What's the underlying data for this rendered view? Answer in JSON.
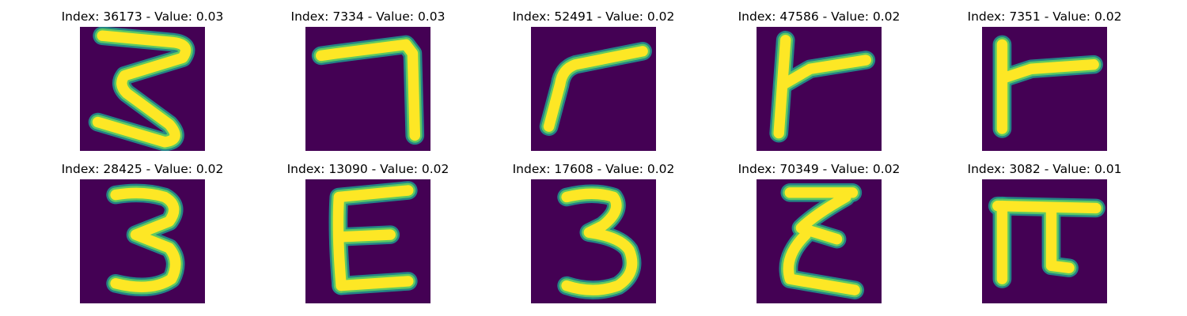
{
  "colors": {
    "background": "#440154",
    "stroke_core": "#fde725",
    "stroke_mid": "#5ec962",
    "stroke_edge": "#21918c"
  },
  "panels": [
    {
      "title": "Index: 36173 - Value: 0.03",
      "glyph": "3"
    },
    {
      "title": "Index: 7334 - Value: 0.03",
      "glyph": "7"
    },
    {
      "title": "Index: 52491 - Value: 0.02",
      "glyph": "7"
    },
    {
      "title": "Index: 47586 - Value: 0.02",
      "glyph": "r"
    },
    {
      "title": "Index: 7351 - Value: 0.02",
      "glyph": "r"
    },
    {
      "title": "Index: 28425 - Value: 0.02",
      "glyph": "3"
    },
    {
      "title": "Index: 13090 - Value: 0.02",
      "glyph": "E"
    },
    {
      "title": "Index: 17608 - Value: 0.02",
      "glyph": "3"
    },
    {
      "title": "Index: 70349 - Value: 0.02",
      "glyph": "3"
    },
    {
      "title": "Index: 3082 - Value: 0.01",
      "glyph": "pi"
    }
  ]
}
